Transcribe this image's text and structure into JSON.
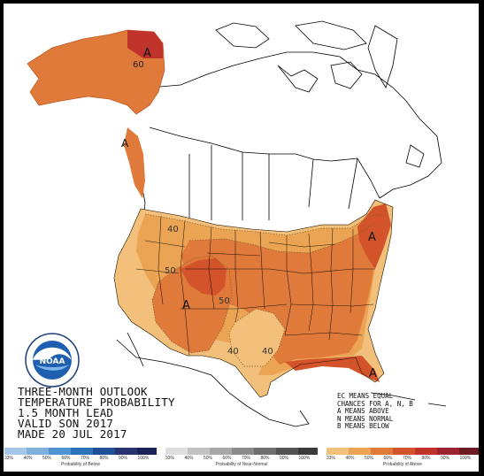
{
  "outlook": {
    "line1": "THREE-MONTH OUTLOOK",
    "line2": "TEMPERATURE PROBABILITY",
    "line3": "1.5 MONTH LEAD",
    "line4": "VALID SON 2017",
    "line5": "MADE 20 JUL 2017"
  },
  "notes": {
    "line1": "EC MEANS EQUAL",
    "line2": "CHANCES FOR A, N, B",
    "line3": "A MEANS ABOVE",
    "line4": "N MEANS NORMAL",
    "line5": "B MEANS BELOW"
  },
  "map_labels": {
    "alaska_60": "60",
    "alaska_a": "A",
    "panhandle_a": "A",
    "contour_40": "40",
    "contour_50_west": "50",
    "contour_50_east": "50",
    "contour_40_south": "40",
    "contour_40_texas": "40",
    "southwest_a": "A",
    "northeast_a": "A",
    "florida_a": "A"
  },
  "scales": {
    "below": {
      "title": "Probability of Below",
      "ticks": [
        "33%",
        "40%",
        "50%",
        "60%",
        "70%",
        "80%",
        "90%",
        "100%"
      ],
      "colors": [
        "#a5c6e8",
        "#7fb1df",
        "#4f94d0",
        "#2a73b8",
        "#1f4f94",
        "#27336f",
        "#1c2257"
      ]
    },
    "normal": {
      "title": "Probability of Near-Normal",
      "ticks": [
        "33%",
        "40%",
        "50%",
        "60%",
        "70%",
        "80%",
        "90%",
        "100%"
      ],
      "colors": [
        "#e0dde0",
        "#c4c1c4",
        "#a8a6a8",
        "#8c8a8c",
        "#706e70",
        "#555355",
        "#3b393b"
      ]
    },
    "above": {
      "title": "Probability of Above",
      "ticks": [
        "33%",
        "40%",
        "50%",
        "60%",
        "70%",
        "80%",
        "90%",
        "100%"
      ],
      "colors": [
        "#f1c27a",
        "#eba453",
        "#e07a3a",
        "#d3542a",
        "#c0332b",
        "#9c2230",
        "#6d1a22"
      ]
    }
  },
  "colors": {
    "p33_40": "#f2c07a",
    "p40_50": "#eba453",
    "p50_60": "#e07a3a",
    "p60_70": "#d3542a",
    "p70_80": "#c0332b"
  },
  "logo": {
    "text": "NOAA",
    "icon": "noaa-logo-icon"
  }
}
